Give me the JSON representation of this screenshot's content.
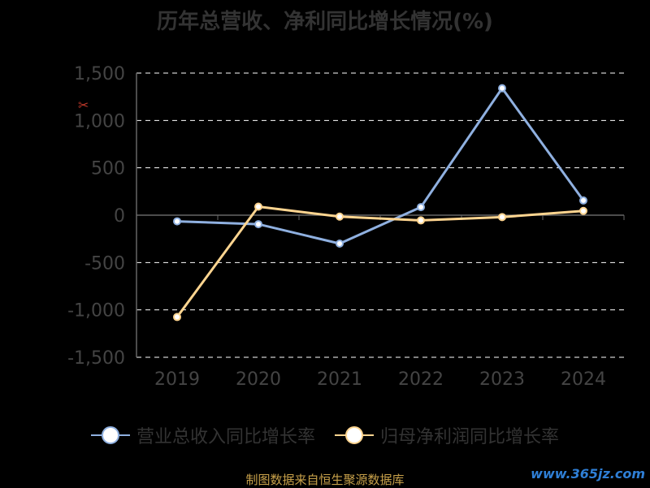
{
  "chart_data": {
    "type": "line",
    "title": "历年总营收、净利同比增长情况(%)",
    "categories": [
      "2019",
      "2020",
      "2021",
      "2022",
      "2023",
      "2024"
    ],
    "series": [
      {
        "name": "营业总收入同比增长率",
        "values": [
          -65,
          -95,
          -300,
          85,
          1340,
          155
        ],
        "color": "#8fb0e0"
      },
      {
        "name": "归母净利润同比增长率",
        "values": [
          -1075,
          90,
          -15,
          -55,
          -20,
          45
        ],
        "color": "#ffd590"
      }
    ],
    "ylim": [
      -1500,
      1500
    ],
    "yticks": [
      1500,
      1000,
      500,
      0,
      -500,
      -1000,
      -1500
    ],
    "ytick_labels": [
      "1,500",
      "1,000",
      "500",
      "0",
      "-500",
      "-1,000",
      "-1,500"
    ],
    "grid": true,
    "legend": "bottom"
  },
  "source_text": "制图数据来自恒生聚源数据库",
  "watermark_text": "www.365jz.com",
  "icons": {
    "link": "link-icon"
  }
}
